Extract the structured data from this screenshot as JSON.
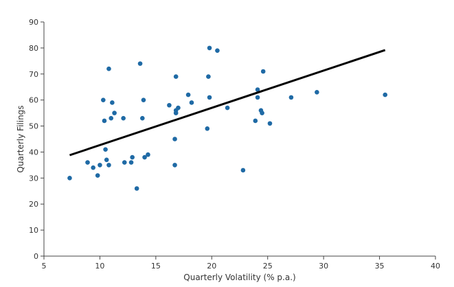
{
  "chart_data": {
    "type": "scatter",
    "title": "",
    "xlabel": "Quarterly Volatility (% p.a.)",
    "ylabel": "Quarterly Filings",
    "xlim": [
      5,
      40
    ],
    "ylim": [
      0,
      90
    ],
    "x_ticks": [
      "5",
      "10",
      "15",
      "20",
      "25",
      "30",
      "35",
      "40"
    ],
    "y_ticks": [
      "0",
      "10",
      "20",
      "30",
      "40",
      "50",
      "60",
      "70",
      "80",
      "90"
    ],
    "grid": false,
    "legend": "none",
    "point_color": "#1f6aa5",
    "trendline_color": "#000000",
    "points": [
      {
        "x": 7.3,
        "y": 30
      },
      {
        "x": 8.9,
        "y": 36
      },
      {
        "x": 9.4,
        "y": 34
      },
      {
        "x": 9.8,
        "y": 31
      },
      {
        "x": 10.0,
        "y": 35
      },
      {
        "x": 10.3,
        "y": 60
      },
      {
        "x": 10.4,
        "y": 52
      },
      {
        "x": 10.5,
        "y": 41
      },
      {
        "x": 10.6,
        "y": 37
      },
      {
        "x": 10.8,
        "y": 35
      },
      {
        "x": 10.8,
        "y": 72
      },
      {
        "x": 11.0,
        "y": 53
      },
      {
        "x": 11.1,
        "y": 59
      },
      {
        "x": 11.3,
        "y": 55
      },
      {
        "x": 12.1,
        "y": 53
      },
      {
        "x": 12.2,
        "y": 36
      },
      {
        "x": 12.8,
        "y": 36
      },
      {
        "x": 12.9,
        "y": 38
      },
      {
        "x": 13.3,
        "y": 26
      },
      {
        "x": 13.6,
        "y": 74
      },
      {
        "x": 13.8,
        "y": 53
      },
      {
        "x": 13.9,
        "y": 60
      },
      {
        "x": 14.0,
        "y": 38
      },
      {
        "x": 14.3,
        "y": 39
      },
      {
        "x": 16.2,
        "y": 58
      },
      {
        "x": 16.7,
        "y": 35
      },
      {
        "x": 16.7,
        "y": 45
      },
      {
        "x": 16.8,
        "y": 69
      },
      {
        "x": 16.8,
        "y": 56
      },
      {
        "x": 16.8,
        "y": 55
      },
      {
        "x": 17.0,
        "y": 57
      },
      {
        "x": 17.9,
        "y": 62
      },
      {
        "x": 18.2,
        "y": 59
      },
      {
        "x": 19.6,
        "y": 49
      },
      {
        "x": 19.7,
        "y": 69
      },
      {
        "x": 19.8,
        "y": 80
      },
      {
        "x": 19.8,
        "y": 61
      },
      {
        "x": 20.5,
        "y": 79
      },
      {
        "x": 21.4,
        "y": 57
      },
      {
        "x": 22.8,
        "y": 33
      },
      {
        "x": 23.9,
        "y": 52
      },
      {
        "x": 24.1,
        "y": 64
      },
      {
        "x": 24.1,
        "y": 61
      },
      {
        "x": 24.4,
        "y": 56
      },
      {
        "x": 24.5,
        "y": 55
      },
      {
        "x": 24.6,
        "y": 71
      },
      {
        "x": 25.2,
        "y": 51
      },
      {
        "x": 27.1,
        "y": 61
      },
      {
        "x": 29.4,
        "y": 63
      },
      {
        "x": 35.5,
        "y": 62
      }
    ],
    "trendline": {
      "x": [
        7.3,
        35.5
      ],
      "y": [
        38.8,
        79.2
      ]
    }
  }
}
